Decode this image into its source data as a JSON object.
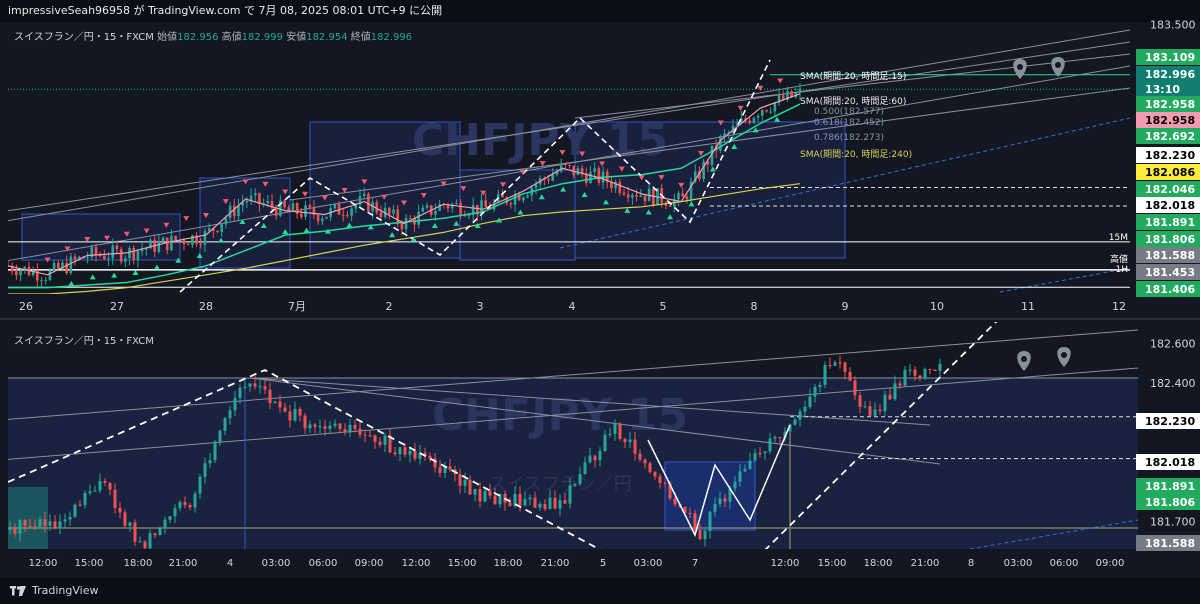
{
  "header": {
    "publish_text": "impressiveSeah96958 が TradingView.com で 7月 08, 2025 08:01 UTC+9 に公開"
  },
  "footer": {
    "brand": "TradingView"
  },
  "colors": {
    "background": "#131722",
    "candle_up": "#26a69a",
    "candle_down": "#ef5350",
    "marker_up": "#26d99a",
    "marker_down": "#f05a6e",
    "sma15": "#ffffff",
    "sma60": "#26d99a",
    "sma240": "#d4d24a",
    "box_fill": "#1f2d5c",
    "box_border": "#3355cc"
  },
  "chart_data": [
    {
      "type": "line",
      "title": "スイスフラン／円・15・FXCM",
      "ohlc": {
        "open_label": "始値",
        "open": "182.956",
        "high_label": "高値",
        "high": "182.999",
        "low_label": "安値",
        "low": "182.954",
        "close_label": "終値",
        "close": "182.996"
      },
      "watermark": "CHFJPY 15",
      "x_tick_labels": [
        "26",
        "27",
        "28",
        "7月",
        "2",
        "3",
        "4",
        "5",
        "8",
        "9",
        "10",
        "11",
        "12"
      ],
      "ylim": [
        181.4,
        183.52
      ],
      "y_tick_labels": [
        "183.500"
      ],
      "price_labels": [
        {
          "text": "183.109",
          "kind": "green"
        },
        {
          "text": "182.996",
          "kind": "teal"
        },
        {
          "text": "13:10",
          "kind": "teal"
        },
        {
          "text": "182.958",
          "kind": "green"
        },
        {
          "text": "182.958",
          "kind": "pink"
        },
        {
          "text": "182.692",
          "kind": "green"
        },
        {
          "text": "182.230",
          "kind": "white"
        },
        {
          "text": "182.086",
          "kind": "yellow"
        },
        {
          "text": "182.046",
          "kind": "green"
        },
        {
          "text": "182.018",
          "kind": "white"
        },
        {
          "text": "181.891",
          "kind": "green"
        },
        {
          "text": "181.806",
          "kind": "green"
        },
        {
          "text": "181.588",
          "kind": "gray"
        },
        {
          "text": "181.453",
          "kind": "gray"
        },
        {
          "text": "181.406",
          "kind": "green"
        }
      ],
      "fib_labels": [
        "0.500(182.577)",
        "0.618(182.452)",
        "0.786(182.273)"
      ],
      "sma_labels": [
        {
          "text": "SMA(期間:20, 時間足:15)"
        },
        {
          "text": "SMA(期間:20, 時間足:60)"
        },
        {
          "text": "SMA(期間:20, 時間足:240)"
        }
      ],
      "line_tags": [
        {
          "text": "15M"
        },
        {
          "text": "高値"
        },
        {
          "text": "1H"
        }
      ],
      "series": [
        {
          "name": "SMA(期間:20, 時間足:15)",
          "values": [
            181.62,
            181.55,
            181.7,
            181.72,
            181.8,
            181.86,
            182.14,
            182.05,
            182.02,
            182.12,
            181.95,
            182.1,
            182.06,
            182.2,
            182.38,
            182.3,
            182.18,
            182.12,
            182.6,
            182.85,
            182.96
          ]
        },
        {
          "name": "SMA(期間:20, 時間足:60)",
          "values": [
            181.45,
            181.45,
            181.47,
            181.49,
            181.55,
            181.62,
            181.74,
            181.86,
            181.89,
            181.93,
            181.96,
            181.99,
            182.04,
            182.18,
            182.26,
            182.31,
            182.33,
            182.38,
            182.55,
            182.73,
            182.88
          ]
        },
        {
          "name": "SMA(期間:20, 時間足:240)",
          "values": [
            181.4,
            181.4,
            181.42,
            181.45,
            181.5,
            181.55,
            181.6,
            181.66,
            181.72,
            181.78,
            181.83,
            181.88,
            181.95,
            182.01,
            182.04,
            182.06,
            182.08,
            182.12,
            182.17,
            182.22,
            182.26
          ]
        }
      ]
    },
    {
      "type": "line",
      "title": "スイスフラン／円・15・FXCM",
      "watermark": "CHFJPY 15",
      "watermark_sub": "スイスフラン／円",
      "x_tick_labels": [
        "12:00",
        "15:00",
        "18:00",
        "21:00",
        "4",
        "03:00",
        "06:00",
        "09:00",
        "12:00",
        "15:00",
        "18:00",
        "21:00",
        "5",
        "03:00",
        "7",
        "12:00",
        "15:00",
        "18:00",
        "21:00",
        "8",
        "03:00",
        "06:00",
        "09:00"
      ],
      "ylim": [
        181.56,
        182.71
      ],
      "y_tick_labels": [
        "182.600",
        "182.400",
        "181.700"
      ],
      "price_labels": [
        {
          "text": "182.230",
          "kind": "white"
        },
        {
          "text": "182.018",
          "kind": "white"
        },
        {
          "text": "181.891",
          "kind": "green"
        },
        {
          "text": "181.806",
          "kind": "green"
        },
        {
          "text": "181.588",
          "kind": "gray"
        }
      ]
    }
  ]
}
